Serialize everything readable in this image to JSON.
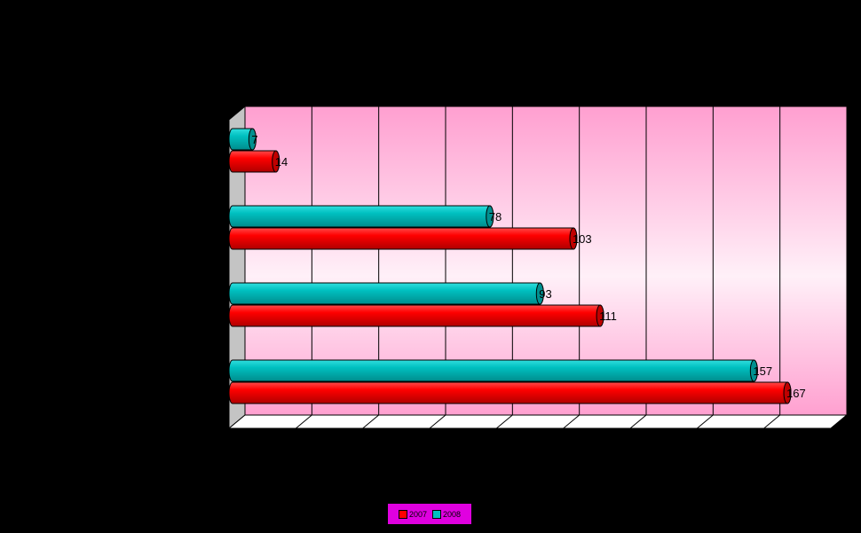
{
  "chart_data": {
    "type": "bar",
    "orientation": "horizontal",
    "title": "",
    "xlabel": "",
    "ylabel": "",
    "xlim": [
      0,
      180
    ],
    "gridlines": [
      0,
      20,
      40,
      60,
      80,
      100,
      120,
      140,
      160,
      180
    ],
    "legend_position": "bottom",
    "categories": [
      "",
      "",
      "",
      ""
    ],
    "series": [
      {
        "name": "2007",
        "color": "#ff0000",
        "values": [
          14,
          103,
          111,
          167
        ],
        "labels": [
          "14",
          "103",
          "111",
          "167"
        ]
      },
      {
        "name": "2008",
        "color": "#00c0c0",
        "values": [
          7,
          78,
          93,
          157
        ],
        "labels": [
          "7",
          "78",
          "93",
          "157"
        ]
      }
    ]
  },
  "legend": {
    "label_2007": "2007",
    "label_2008": "2008",
    "color_2007": "#ff0000",
    "color_2008": "#00c0c0"
  }
}
